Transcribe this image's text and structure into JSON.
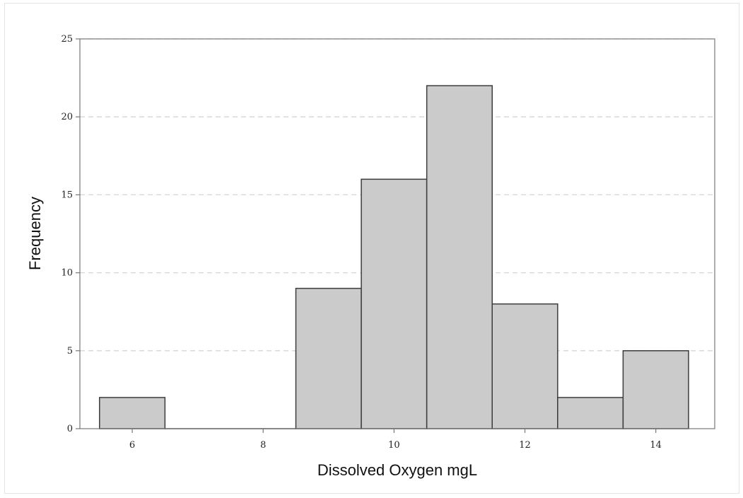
{
  "chart_data": {
    "type": "bar",
    "variant": "histogram",
    "xlabel": "Dissolved Oxygen mgL",
    "ylabel": "Frequency",
    "xlim": [
      5.2,
      14.9
    ],
    "ylim": [
      0,
      25
    ],
    "bins": [
      {
        "start": 5.5,
        "end": 6.5,
        "value": 2
      },
      {
        "start": 6.5,
        "end": 7.5,
        "value": 0
      },
      {
        "start": 7.5,
        "end": 8.5,
        "value": 0
      },
      {
        "start": 8.5,
        "end": 9.5,
        "value": 9
      },
      {
        "start": 9.5,
        "end": 10.5,
        "value": 16
      },
      {
        "start": 10.5,
        "end": 11.5,
        "value": 22
      },
      {
        "start": 11.5,
        "end": 12.5,
        "value": 8
      },
      {
        "start": 12.5,
        "end": 13.5,
        "value": 2
      },
      {
        "start": 13.5,
        "end": 14.5,
        "value": 5
      }
    ],
    "x_ticks": [
      6,
      8,
      10,
      12,
      14
    ],
    "y_ticks": [
      0,
      5,
      10,
      15,
      20,
      25
    ],
    "grid": "horizontal dashed",
    "bar_fill": "#cbcbcb",
    "bar_stroke": "#3c3c3c",
    "grid_color": "#d6d6d6",
    "axis_color": "#777777"
  }
}
